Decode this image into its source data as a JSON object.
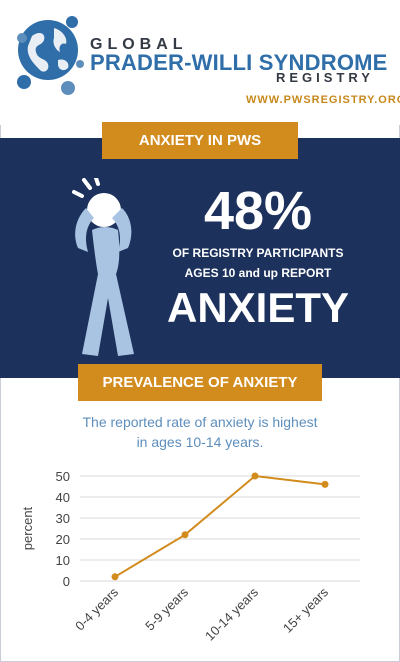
{
  "header": {
    "brand_line1": "GLOBAL",
    "brand_line2": "PRADER-WILLI SYNDROME",
    "brand_line3": "REGISTRY",
    "url": "WWW.PWSREGISTRY.ORG"
  },
  "section1": {
    "banner": "ANXIETY IN PWS",
    "stat": "48%",
    "line1": "OF REGISTRY PARTICIPANTS",
    "line2": "AGES 10  and up REPORT",
    "word": "ANXIETY",
    "icon": "anxious-person-icon"
  },
  "section2": {
    "banner": "PREVALENCE OF ANXIETY",
    "caption_line1": "The reported rate of anxiety is highest",
    "caption_line2": "in ages 10-14 years."
  },
  "colors": {
    "navy": "#1c315c",
    "orange": "#d28b1d",
    "blue": "#2f6ea9",
    "light_blue": "#5d8ebc"
  },
  "chart_data": {
    "type": "line",
    "categories": [
      "0-4 years",
      "5-9 years",
      "10-14 years",
      "15+ years"
    ],
    "series": [
      {
        "values": [
          2,
          22,
          50,
          46
        ]
      }
    ],
    "ylabel": "percent",
    "xlabel": "",
    "ylim": [
      0,
      50
    ],
    "yticks": [
      0,
      10,
      20,
      30,
      40,
      50
    ],
    "grid": true
  }
}
